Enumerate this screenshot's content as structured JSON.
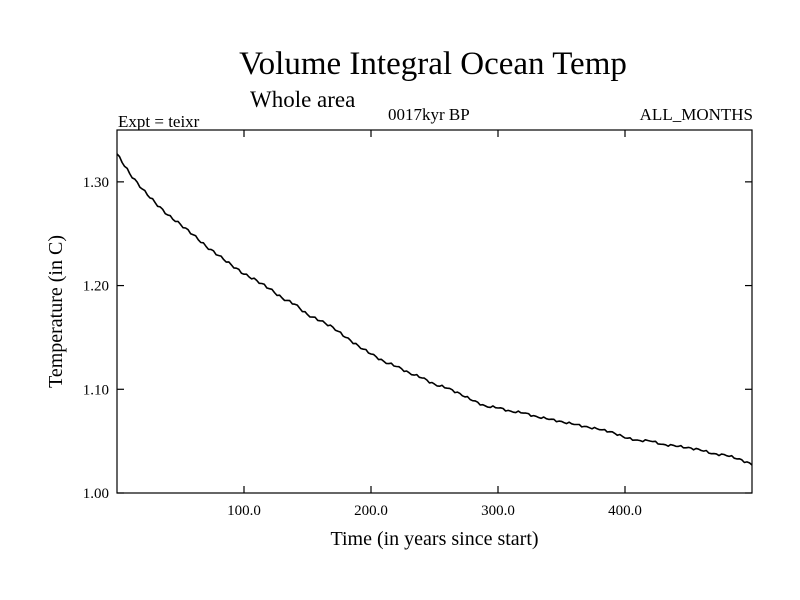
{
  "header": {
    "title": "Volume Integral Ocean Temp",
    "subtitle": "Whole area",
    "experiment": "Expt = teixr",
    "period": "0017kyr BP",
    "months": "ALL_MONTHS"
  },
  "chart_data": {
    "type": "line",
    "xlabel": "Time (in years since start)",
    "ylabel": "Temperature (in C)",
    "xlim": [
      0,
      500
    ],
    "ylim": [
      1.0,
      1.35
    ],
    "x_ticks": [
      100,
      200,
      300,
      400
    ],
    "x_tick_labels": [
      "100.0",
      "200.0",
      "300.0",
      "400.0"
    ],
    "y_ticks": [
      1.0,
      1.1,
      1.2,
      1.3
    ],
    "y_tick_labels": [
      "1.00",
      "1.10",
      "1.20",
      "1.30"
    ],
    "grid": false,
    "line_color": "#000000",
    "series": [
      {
        "x": [
          0,
          10,
          20,
          30,
          40,
          50,
          60,
          70,
          80,
          90,
          100,
          110,
          120,
          130,
          140,
          150,
          160,
          170,
          180,
          190,
          200,
          210,
          220,
          230,
          240,
          250,
          260,
          270,
          280,
          290,
          300,
          310,
          320,
          330,
          340,
          350,
          360,
          370,
          380,
          390,
          400,
          410,
          420,
          430,
          440,
          450,
          460,
          470,
          480,
          490,
          500
        ],
        "y": [
          1.327,
          1.308,
          1.293,
          1.28,
          1.268,
          1.259,
          1.249,
          1.238,
          1.229,
          1.22,
          1.211,
          1.205,
          1.197,
          1.188,
          1.182,
          1.172,
          1.166,
          1.16,
          1.15,
          1.142,
          1.134,
          1.127,
          1.122,
          1.116,
          1.111,
          1.105,
          1.101,
          1.096,
          1.089,
          1.084,
          1.082,
          1.079,
          1.077,
          1.074,
          1.071,
          1.069,
          1.066,
          1.064,
          1.061,
          1.059,
          1.053,
          1.051,
          1.05,
          1.047,
          1.045,
          1.044,
          1.041,
          1.038,
          1.036,
          1.033,
          1.027
        ]
      }
    ]
  }
}
